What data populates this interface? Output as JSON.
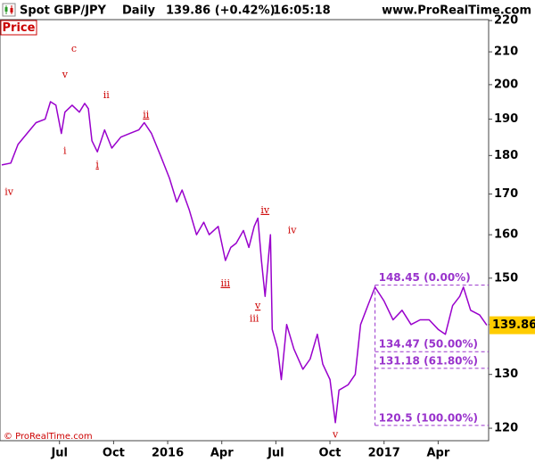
{
  "header": {
    "symbol": "Spot GBP/JPY",
    "period": "Daily",
    "change": "139.86 (+0.42%)",
    "time": "16:05:18",
    "site": "www.ProRealTime.com"
  },
  "panel_label": "Price",
  "copyright": "© ProRealTime.com",
  "chart_data": {
    "type": "line",
    "log": true,
    "color": "#9900cc",
    "x": [
      -9.2,
      -8.7,
      -8.3,
      -7.8,
      -7.3,
      -6.8,
      -6.5,
      -6.2,
      -5.9,
      -5.7,
      -5.3,
      -4.9,
      -4.6,
      -4.4,
      -4.2,
      -3.9,
      -3.5,
      -3.1,
      -2.6,
      -2.1,
      -1.6,
      -1.3,
      -0.9,
      -0.4,
      0.1,
      0.5,
      0.8,
      1.2,
      1.6,
      2.0,
      2.3,
      2.8,
      3.2,
      3.5,
      3.8,
      4.2,
      4.5,
      4.8,
      5.0,
      5.2,
      5.4,
      5.7,
      5.8,
      6.1,
      6.3,
      6.6,
      7.0,
      7.5,
      7.9,
      8.3,
      8.6,
      9.0,
      9.3,
      9.5,
      10.0,
      10.4,
      10.7,
      11.1,
      11.5,
      12.0,
      12.5,
      13.0,
      13.5,
      14.0,
      14.5,
      15.0,
      15.4,
      15.8,
      16.2,
      16.4,
      16.8,
      17.3,
      17.7
    ],
    "values": [
      177.5,
      178,
      183,
      186,
      189,
      190,
      195,
      194,
      186,
      192,
      194,
      192,
      194.5,
      193,
      184,
      181,
      187,
      182,
      185,
      186,
      187,
      189,
      186,
      180,
      174,
      168,
      171,
      166,
      160,
      163,
      160,
      162,
      154,
      157,
      158,
      161,
      157,
      162,
      164,
      154,
      146,
      160,
      139,
      135,
      129,
      140,
      135,
      131,
      133,
      138,
      132,
      129,
      121,
      127,
      128,
      130,
      140,
      144,
      148,
      145,
      141,
      143,
      140,
      141,
      141,
      139,
      138,
      144,
      146,
      148,
      143,
      142,
      139.86
    ],
    "last_price": 139.86,
    "xlim": [
      -9.3,
      17.8
    ],
    "ylim": [
      117.8,
      220.3
    ],
    "xticks": [
      {
        "value": -6,
        "label": "Jul"
      },
      {
        "value": -3,
        "label": "Oct"
      },
      {
        "value": 0,
        "label": "2016"
      },
      {
        "value": 3,
        "label": "Apr"
      },
      {
        "value": 6,
        "label": "Jul"
      },
      {
        "value": 9,
        "label": "Oct"
      },
      {
        "value": 12,
        "label": "2017"
      },
      {
        "value": 15,
        "label": "Apr"
      }
    ],
    "yticks": [
      120,
      130,
      140,
      150,
      160,
      170,
      180,
      190,
      200,
      210,
      220
    ],
    "fib_start": 11.5,
    "fib_color": "#9933cc",
    "fib": [
      {
        "value": 148.45,
        "label": "148.45 (0.00%)"
      },
      {
        "value": 134.47,
        "label": "134.47 (50.00%)"
      },
      {
        "value": 131.18,
        "label": "131.18 (61.80%)"
      },
      {
        "value": 120.5,
        "label": "120.5 (100.00%)"
      }
    ],
    "waves": [
      {
        "text": "c",
        "x": -5.2,
        "y": 210.9,
        "underline": false
      },
      {
        "text": "v",
        "x": -5.7,
        "y": 202.9,
        "underline": false
      },
      {
        "text": "ii",
        "x": -3.4,
        "y": 196.8,
        "underline": false
      },
      {
        "text": "ii",
        "x": -1.2,
        "y": 191.2,
        "underline": true
      },
      {
        "text": "i",
        "x": -5.7,
        "y": 181.1,
        "underline": false
      },
      {
        "text": "i",
        "x": -3.9,
        "y": 177.5,
        "underline": true
      },
      {
        "text": "iv",
        "x": -8.8,
        "y": 170.4,
        "underline": false
      },
      {
        "text": "iv",
        "x": 5.4,
        "y": 165.9,
        "underline": true
      },
      {
        "text": "iv",
        "x": 6.9,
        "y": 161.0,
        "underline": false
      },
      {
        "text": "iii",
        "x": 3.2,
        "y": 148.8,
        "underline": true
      },
      {
        "text": "v",
        "x": 5.0,
        "y": 143.9,
        "underline": true
      },
      {
        "text": "iii",
        "x": 4.8,
        "y": 141.2,
        "underline": false
      },
      {
        "text": "v",
        "x": 9.3,
        "y": 118.8,
        "underline": false
      }
    ]
  }
}
